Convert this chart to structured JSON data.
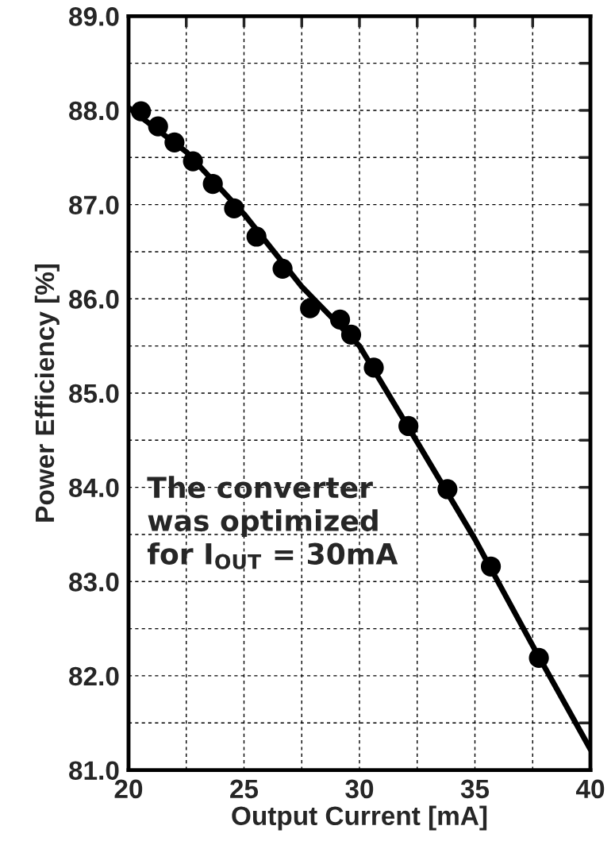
{
  "chart_data": {
    "type": "scatter",
    "xlabel": "Output Current [mA]",
    "ylabel": "Power Efficiency [%]",
    "annotations": [
      "The converter\nwas optimized\nfor I$_{OUT}$ = 30mA"
    ],
    "xlim": [
      20,
      40
    ],
    "ylim": [
      81.0,
      89.0
    ],
    "xticks": [
      20,
      {
        "value": 22.5,
        "label": null
      },
      25,
      {
        "value": 27.5,
        "label": null
      },
      30,
      {
        "value": 32.5,
        "label": null
      },
      35,
      {
        "value": 37.5,
        "label": null
      },
      40
    ],
    "yticks": [
      {
        "value": 81,
        "label": "81.0"
      },
      {
        "value": 81.5,
        "label": null
      },
      {
        "value": 82,
        "label": "82.0"
      },
      {
        "value": 82.5,
        "label": null
      },
      {
        "value": 83,
        "label": "83.0"
      },
      {
        "value": 83.5,
        "label": null
      },
      {
        "value": 84,
        "label": "84.0"
      },
      {
        "value": 84.5,
        "label": null
      },
      {
        "value": 85,
        "label": "85.0"
      },
      {
        "value": 85.5,
        "label": null
      },
      {
        "value": 86,
        "label": "86.0"
      },
      {
        "value": 86.5,
        "label": null
      },
      {
        "value": 87,
        "label": "87.0"
      },
      {
        "value": 87.5,
        "label": null
      },
      {
        "value": 88,
        "label": "88.0"
      },
      {
        "value": 88.5,
        "label": null
      },
      {
        "value": 89,
        "label": "89.0"
      }
    ],
    "grid": true,
    "marker": "circle",
    "series": [
      {
        "color": "#000000",
        "x": [
          20.54,
          21.28,
          21.99,
          22.79,
          23.65,
          24.57,
          25.54,
          26.67,
          27.86,
          29.16,
          29.64,
          30.62,
          32.12,
          33.81,
          35.69,
          37.77
        ],
        "values": [
          87.99,
          87.83,
          87.66,
          87.46,
          87.22,
          86.96,
          86.66,
          86.32,
          85.9,
          85.78,
          85.62,
          85.27,
          84.65,
          83.98,
          83.16,
          82.19
        ]
      },
      {
        "type": "line",
        "color": "#000000",
        "marker": "none",
        "line_style": "solid",
        "x": [
          20,
          22.5,
          25,
          27.5,
          30,
          32.5,
          35,
          37.5,
          40
        ],
        "values": [
          88.03,
          87.56,
          86.9,
          86.13,
          85.5,
          84.48,
          83.45,
          82.32,
          81.22
        ]
      }
    ]
  }
}
